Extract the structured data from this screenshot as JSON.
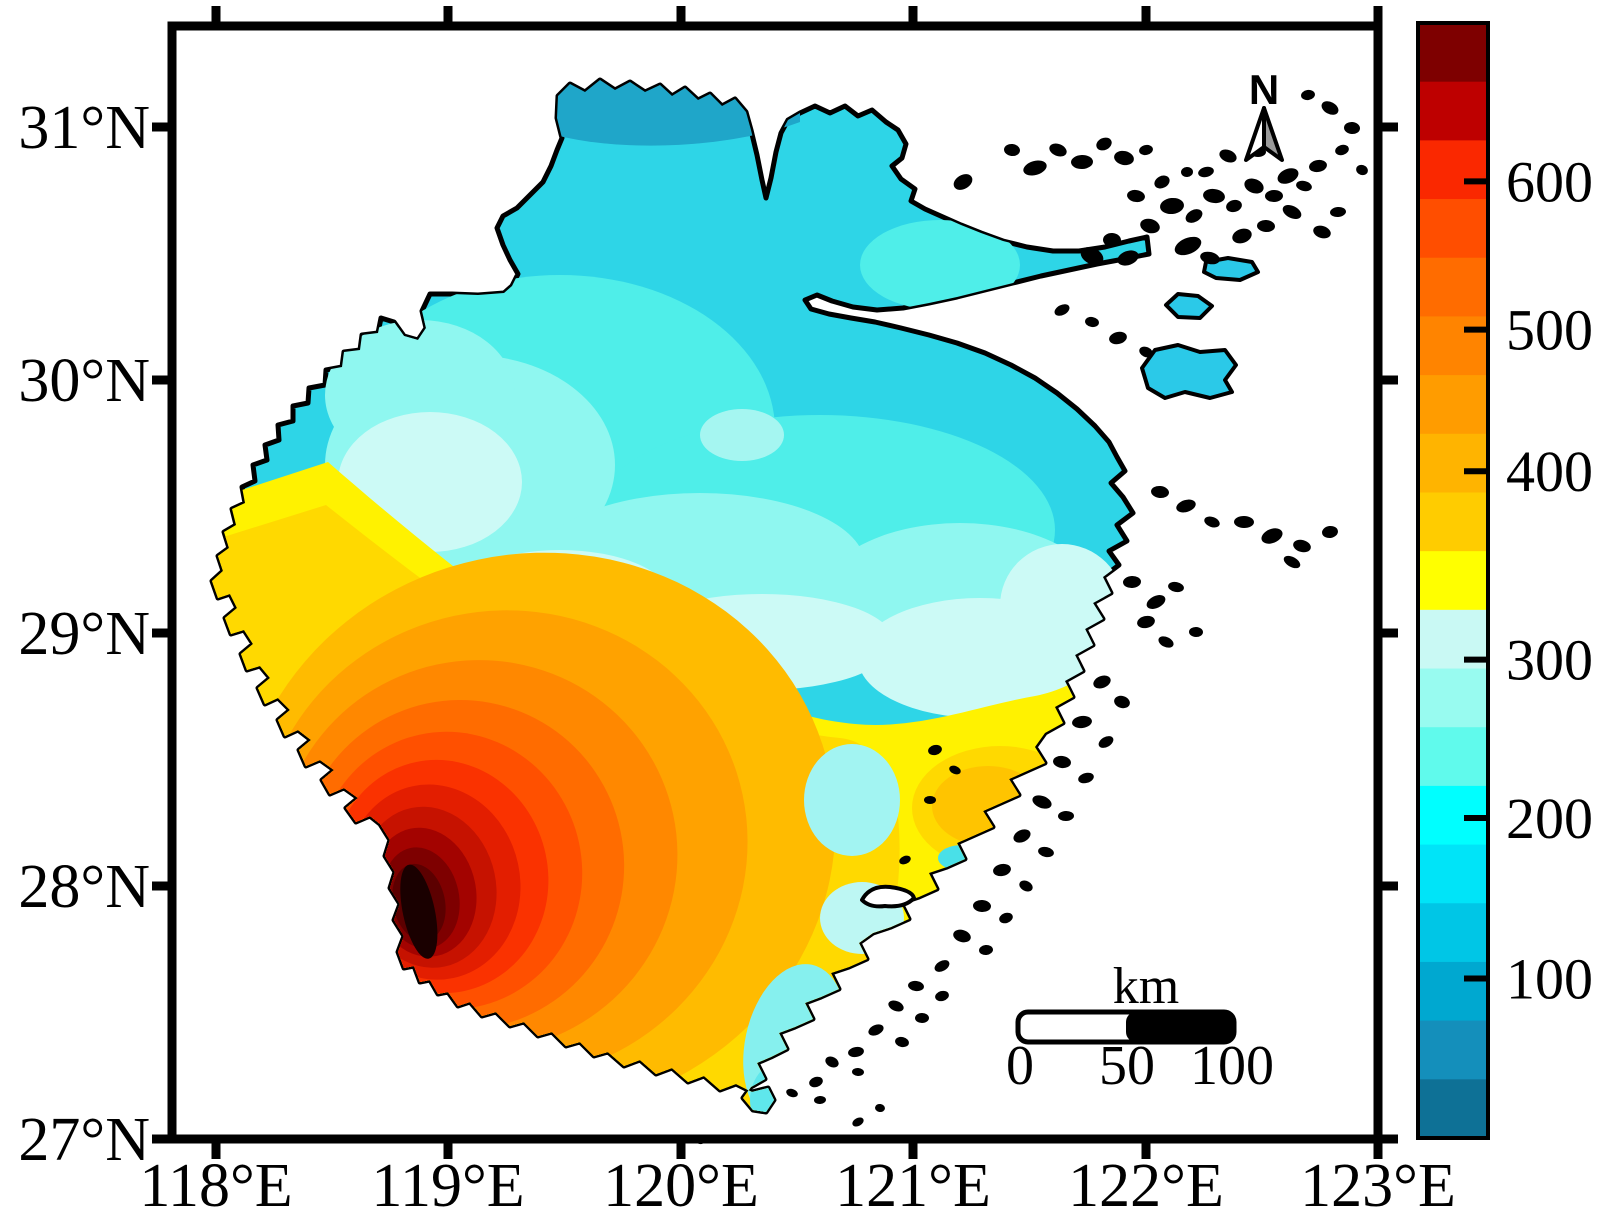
{
  "figure": {
    "background": "#FFFFFF"
  },
  "axes": {
    "lon_ticks": [
      {
        "label": "118°E"
      },
      {
        "label": "119°E"
      },
      {
        "label": "120°E"
      },
      {
        "label": "121°E"
      },
      {
        "label": "122°E"
      },
      {
        "label": "123°E"
      }
    ],
    "lat_ticks": [
      {
        "label": "31°N"
      },
      {
        "label": "30°N"
      },
      {
        "label": "29°N"
      },
      {
        "label": "28°N"
      },
      {
        "label": "27°N"
      }
    ]
  },
  "colorbar": {
    "tick_labels": [
      "600",
      "500",
      "400",
      "300",
      "200",
      "100"
    ],
    "segment_colors_top_to_bottom": [
      "#7E0000",
      "#BE0000",
      "#FA2800",
      "#FF4E00",
      "#FF6C00",
      "#FF8400",
      "#FF9C00",
      "#FFB400",
      "#FFCC00",
      "#FFFF00",
      "#C9F9F4",
      "#98FBF0",
      "#60FAEC",
      "#00FFFF",
      "#00E4F8",
      "#00C6E6",
      "#00A8D0",
      "#148FBB",
      "#0E7196"
    ]
  },
  "north_arrow": {
    "label": "N"
  },
  "scale_bar": {
    "unit_label": "km",
    "tick_labels": [
      "0",
      "50",
      "100"
    ]
  },
  "map": {
    "region": "province contour map",
    "land_base_color": "#2ED5E7",
    "hotspot_core_color": "#1A0000",
    "sea_color": "#FFFFFF"
  }
}
